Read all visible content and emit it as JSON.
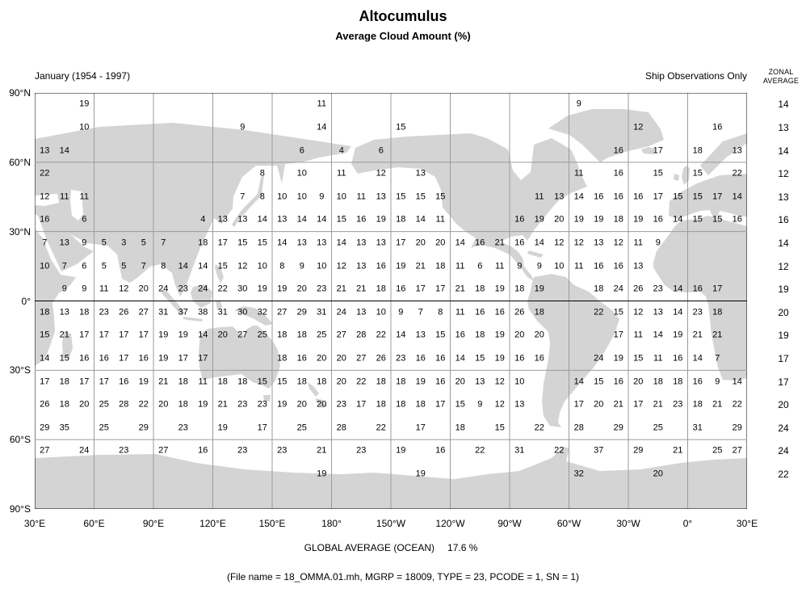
{
  "colors": {
    "land": "#d4d4d4",
    "grid": "#9b9b9b",
    "frame": "#000000",
    "sea": "#ffffff"
  },
  "chart_data": {
    "type": "heatmap",
    "title": "Altocumulus",
    "subtitle": "Average Cloud Amount (%)",
    "period_label": "January (1954 - 1997)",
    "obs_label": "Ship Observations Only",
    "zonal_header": {
      "line1": "ZONAL",
      "line2": "AVERAGE"
    },
    "x_tick_labels": [
      "30°E",
      "60°E",
      "90°E",
      "120°E",
      "150°E",
      "180°",
      "150°W",
      "120°W",
      "90°W",
      "60°W",
      "30°W",
      "0°",
      "30°E"
    ],
    "y_tick_labels": [
      "90°N",
      "60°N",
      "30°N",
      "0°",
      "30°S",
      "60°S",
      "90°S"
    ],
    "grid": {
      "lon_cells": 36,
      "lat_cells": 18,
      "cell_deg": 10,
      "lon_left_edge": "30°E",
      "gridline_step_deg": 30
    },
    "rows": [
      {
        "lat_band": "85°N",
        "zonal_average": 14,
        "values": [
          null,
          null,
          19,
          null,
          null,
          null,
          null,
          null,
          null,
          null,
          null,
          null,
          null,
          null,
          11,
          null,
          null,
          null,
          null,
          null,
          null,
          null,
          null,
          null,
          null,
          null,
          null,
          9,
          null,
          null,
          null,
          null,
          null,
          null,
          null,
          null
        ]
      },
      {
        "lat_band": "75°N",
        "zonal_average": 13,
        "values": [
          null,
          null,
          10,
          null,
          null,
          null,
          null,
          null,
          null,
          null,
          9,
          null,
          null,
          null,
          14,
          null,
          null,
          null,
          15,
          null,
          null,
          null,
          null,
          null,
          null,
          null,
          null,
          null,
          null,
          null,
          12,
          null,
          null,
          null,
          16,
          null
        ]
      },
      {
        "lat_band": "65°N",
        "zonal_average": 14,
        "values": [
          13,
          14,
          null,
          null,
          null,
          null,
          null,
          null,
          null,
          null,
          null,
          null,
          null,
          6,
          null,
          4,
          null,
          6,
          null,
          null,
          null,
          null,
          null,
          null,
          null,
          null,
          null,
          null,
          null,
          16,
          null,
          17,
          null,
          18,
          null,
          13
        ]
      },
      {
        "lat_band": "55°N",
        "zonal_average": 12,
        "values": [
          22,
          null,
          null,
          null,
          null,
          null,
          null,
          null,
          null,
          null,
          null,
          8,
          null,
          10,
          null,
          11,
          null,
          12,
          null,
          13,
          null,
          null,
          null,
          null,
          null,
          null,
          null,
          11,
          null,
          16,
          null,
          15,
          null,
          15,
          null,
          22
        ]
      },
      {
        "lat_band": "45°N",
        "zonal_average": 13,
        "values": [
          12,
          11,
          11,
          null,
          null,
          null,
          null,
          null,
          null,
          null,
          7,
          8,
          10,
          10,
          9,
          10,
          11,
          13,
          15,
          15,
          15,
          null,
          null,
          null,
          null,
          11,
          13,
          14,
          16,
          16,
          16,
          17,
          15,
          15,
          17,
          14
        ]
      },
      {
        "lat_band": "35°N",
        "zonal_average": 16,
        "values": [
          16,
          null,
          6,
          null,
          null,
          null,
          null,
          null,
          4,
          13,
          13,
          14,
          13,
          14,
          14,
          15,
          16,
          19,
          18,
          14,
          11,
          null,
          null,
          null,
          16,
          19,
          20,
          19,
          19,
          18,
          19,
          16,
          14,
          15,
          15,
          16
        ]
      },
      {
        "lat_band": "25°N",
        "zonal_average": 14,
        "values": [
          7,
          13,
          9,
          5,
          3,
          5,
          7,
          null,
          18,
          17,
          15,
          15,
          14,
          13,
          13,
          14,
          13,
          13,
          17,
          20,
          20,
          14,
          16,
          21,
          16,
          14,
          12,
          12,
          13,
          12,
          11,
          9,
          null,
          null,
          null,
          null
        ]
      },
      {
        "lat_band": "15°N",
        "zonal_average": 12,
        "values": [
          10,
          7,
          6,
          5,
          5,
          7,
          8,
          14,
          14,
          15,
          12,
          10,
          8,
          9,
          10,
          12,
          13,
          16,
          19,
          21,
          18,
          11,
          6,
          11,
          9,
          9,
          10,
          11,
          16,
          16,
          13,
          null,
          null,
          null,
          null,
          null
        ]
      },
      {
        "lat_band": "5°N",
        "zonal_average": 19,
        "values": [
          null,
          9,
          9,
          11,
          12,
          20,
          24,
          23,
          24,
          22,
          30,
          19,
          19,
          20,
          23,
          21,
          21,
          18,
          16,
          17,
          17,
          21,
          18,
          19,
          18,
          19,
          null,
          null,
          18,
          24,
          26,
          23,
          14,
          16,
          17,
          null
        ]
      },
      {
        "lat_band": "5°S",
        "zonal_average": 20,
        "values": [
          18,
          13,
          18,
          23,
          26,
          27,
          31,
          37,
          38,
          31,
          30,
          32,
          27,
          29,
          31,
          24,
          13,
          10,
          9,
          7,
          8,
          11,
          16,
          16,
          26,
          18,
          null,
          null,
          22,
          15,
          12,
          13,
          14,
          23,
          18,
          null
        ]
      },
      {
        "lat_band": "15°S",
        "zonal_average": 19,
        "values": [
          15,
          21,
          17,
          17,
          17,
          17,
          19,
          19,
          14,
          20,
          27,
          25,
          18,
          18,
          25,
          27,
          28,
          22,
          14,
          13,
          15,
          16,
          18,
          19,
          20,
          20,
          null,
          null,
          null,
          17,
          11,
          14,
          19,
          21,
          21,
          null
        ]
      },
      {
        "lat_band": "25°S",
        "zonal_average": 17,
        "values": [
          14,
          15,
          16,
          16,
          17,
          16,
          19,
          17,
          17,
          null,
          null,
          null,
          18,
          16,
          20,
          20,
          27,
          26,
          23,
          16,
          16,
          14,
          15,
          19,
          16,
          16,
          null,
          null,
          24,
          19,
          15,
          11,
          16,
          14,
          7,
          null
        ]
      },
      {
        "lat_band": "35°S",
        "zonal_average": 17,
        "values": [
          17,
          18,
          17,
          17,
          16,
          19,
          21,
          18,
          11,
          18,
          18,
          15,
          15,
          18,
          18,
          20,
          22,
          18,
          18,
          19,
          16,
          20,
          13,
          12,
          10,
          null,
          null,
          14,
          15,
          16,
          20,
          18,
          18,
          16,
          9,
          14
        ]
      },
      {
        "lat_band": "45°S",
        "zonal_average": 20,
        "values": [
          26,
          18,
          20,
          25,
          28,
          22,
          20,
          18,
          19,
          21,
          23,
          23,
          19,
          20,
          20,
          23,
          17,
          18,
          18,
          18,
          17,
          15,
          9,
          12,
          13,
          null,
          null,
          17,
          20,
          21,
          17,
          21,
          23,
          18,
          21,
          22
        ]
      },
      {
        "lat_band": "55°S",
        "zonal_average": 24,
        "values": [
          29,
          35,
          null,
          25,
          null,
          29,
          null,
          23,
          null,
          19,
          null,
          17,
          null,
          25,
          null,
          28,
          null,
          22,
          null,
          17,
          null,
          18,
          null,
          15,
          null,
          22,
          null,
          28,
          null,
          29,
          null,
          25,
          null,
          31,
          null,
          29
        ]
      },
      {
        "lat_band": "65°S",
        "zonal_average": 24,
        "values": [
          27,
          null,
          24,
          null,
          23,
          null,
          27,
          null,
          16,
          null,
          23,
          null,
          23,
          null,
          21,
          null,
          23,
          null,
          19,
          null,
          16,
          null,
          22,
          null,
          31,
          null,
          22,
          null,
          37,
          null,
          29,
          null,
          21,
          null,
          25,
          27
        ]
      },
      {
        "lat_band": "75°S",
        "zonal_average": 22,
        "values": [
          null,
          null,
          null,
          null,
          null,
          null,
          null,
          null,
          null,
          null,
          null,
          null,
          null,
          null,
          19,
          null,
          null,
          null,
          null,
          19,
          null,
          null,
          null,
          null,
          null,
          null,
          null,
          32,
          null,
          null,
          null,
          20,
          null,
          null,
          null,
          null
        ]
      }
    ],
    "footer": {
      "global_average_label": "GLOBAL AVERAGE (OCEAN)",
      "global_average_value": "17.6 %",
      "file_info": "(File name = 18_OMMA.01.mh, MGRP = 18009, TYPE = 23, PCODE = 1, SN = 1)"
    }
  }
}
